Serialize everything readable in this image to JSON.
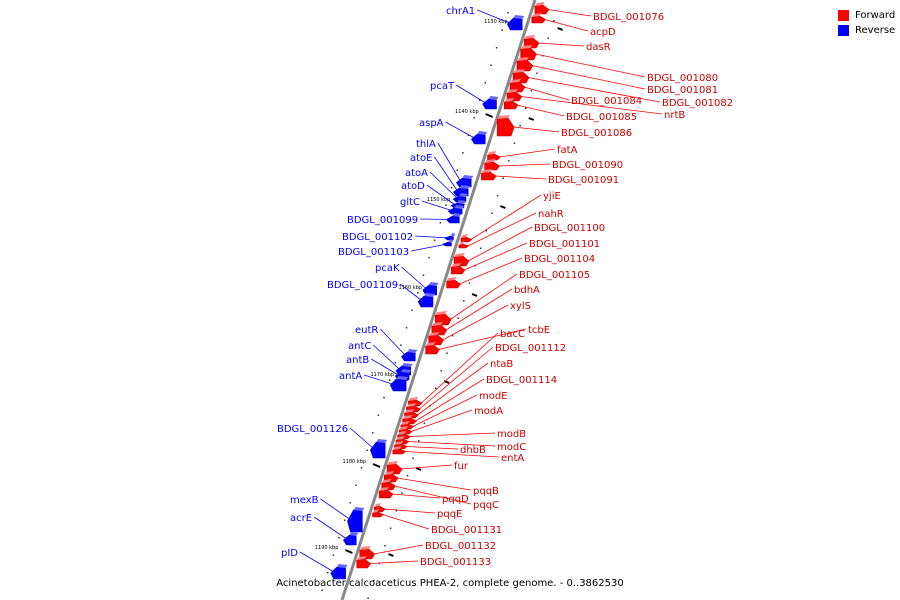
{
  "legend": {
    "forward_label": "Forward",
    "reverse_label": "Reverse",
    "forward_color": "#ff0000",
    "reverse_color": "#0000ff"
  },
  "caption": "Acinetobacter calcoaceticus PHEA-2, complete genome. - 0..3862530",
  "tick_labels": [
    "1130 kbp",
    "1140 kbp",
    "1150 kbp",
    "1160 kbp",
    "1170 kbp",
    "1180 kbp",
    "1190 kbp"
  ],
  "reverse_genes": [
    "chrA1",
    "pcaT",
    "aspA",
    "thlA",
    "atoE",
    "atoA",
    "atoD",
    "gltC",
    "BDGL_001099",
    "BDGL_001102",
    "BDGL_001103",
    "pcaK",
    "BDGL_001109",
    "eutR",
    "antC",
    "antB",
    "antA",
    "BDGL_001126",
    "mexB",
    "acrE",
    "pID"
  ],
  "forward_genes": [
    "BDGL_001076",
    "acpD",
    "dasR",
    "BDGL_001080",
    "BDGL_001081",
    "BDGL_001082",
    "BDGL_001084",
    "nrtB",
    "BDGL_001085",
    "BDGL_001086",
    "fatA",
    "BDGL_001090",
    "BDGL_001091",
    "yjiE",
    "nahR",
    "BDGL_001100",
    "BDGL_001101",
    "BDGL_001104",
    "BDGL_001105",
    "bdhA",
    "xylS",
    "tcbE",
    "bacC",
    "BDGL_001112",
    "ntaB",
    "BDGL_001114",
    "modE",
    "modA",
    "modB",
    "modC",
    "dhbB",
    "entA",
    "fur",
    "pqqB",
    "pqqC",
    "pqqD",
    "pqqE",
    "BDGL_001131",
    "BDGL_001132",
    "BDGL_001133"
  ]
}
